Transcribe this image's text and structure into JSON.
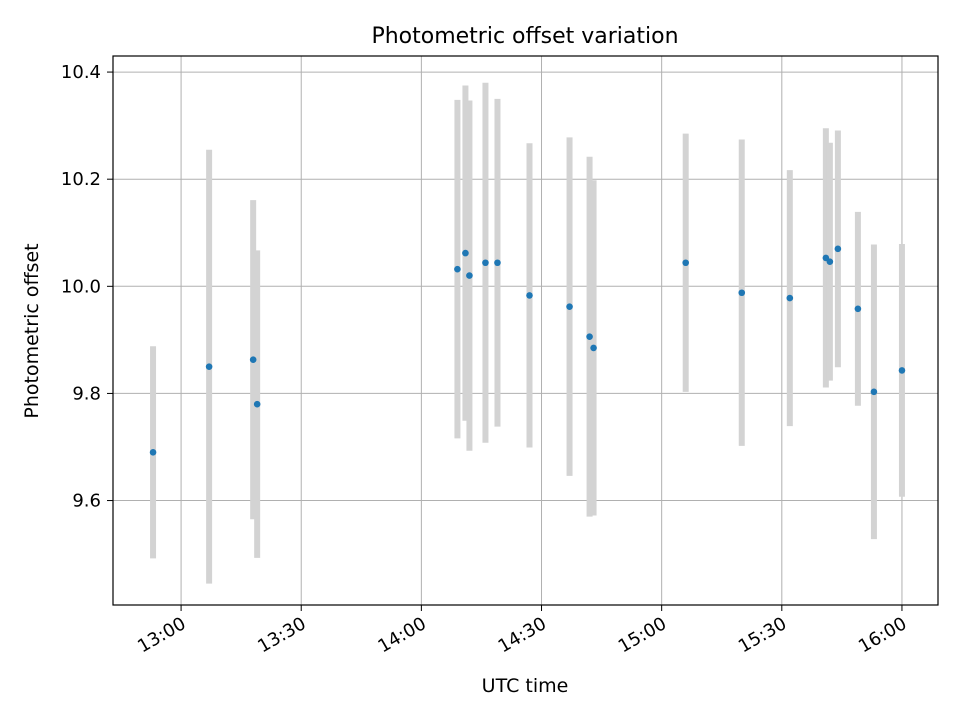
{
  "chart_data": {
    "type": "scatter",
    "title": "Photometric offset variation",
    "xlabel": "UTC time",
    "ylabel": "Photometric offset",
    "x_ticks": [
      "13:00",
      "13:30",
      "14:00",
      "14:30",
      "15:00",
      "15:30",
      "16:00"
    ],
    "y_ticks": [
      "9.6",
      "9.8",
      "10.0",
      "10.2",
      "10.4"
    ],
    "xlim": [
      "12:43",
      "16:09"
    ],
    "ylim": [
      9.405,
      10.43
    ],
    "grid": true,
    "colors": {
      "point": "#1f77b4",
      "errorbar": "#d3d3d3",
      "grid": "#b0b0b0"
    },
    "points": [
      {
        "time": "12:53",
        "y": 9.69,
        "err": 0.198
      },
      {
        "time": "13:07",
        "y": 9.85,
        "err": 0.405
      },
      {
        "time": "13:18",
        "y": 9.863,
        "err": 0.298
      },
      {
        "time": "13:19",
        "y": 9.78,
        "err": 0.287
      },
      {
        "time": "14:09",
        "y": 10.032,
        "err": 0.316
      },
      {
        "time": "14:11",
        "y": 10.062,
        "err": 0.313
      },
      {
        "time": "14:12",
        "y": 10.02,
        "err": 0.327
      },
      {
        "time": "14:16",
        "y": 10.044,
        "err": 0.336
      },
      {
        "time": "14:19",
        "y": 10.044,
        "err": 0.306
      },
      {
        "time": "14:27",
        "y": 9.983,
        "err": 0.284
      },
      {
        "time": "14:37",
        "y": 9.962,
        "err": 0.316
      },
      {
        "time": "14:42",
        "y": 9.906,
        "err": 0.336
      },
      {
        "time": "14:43",
        "y": 9.885,
        "err": 0.313
      },
      {
        "time": "15:06",
        "y": 10.044,
        "err": 0.241
      },
      {
        "time": "15:20",
        "y": 9.988,
        "err": 0.286
      },
      {
        "time": "15:32",
        "y": 9.978,
        "err": 0.239
      },
      {
        "time": "15:41",
        "y": 10.053,
        "err": 0.242
      },
      {
        "time": "15:42",
        "y": 10.046,
        "err": 0.222
      },
      {
        "time": "15:44",
        "y": 10.07,
        "err": 0.221
      },
      {
        "time": "15:49",
        "y": 9.958,
        "err": 0.181
      },
      {
        "time": "15:53",
        "y": 9.803,
        "err": 0.275
      },
      {
        "time": "16:00",
        "y": 9.843,
        "err": 0.236
      }
    ]
  }
}
